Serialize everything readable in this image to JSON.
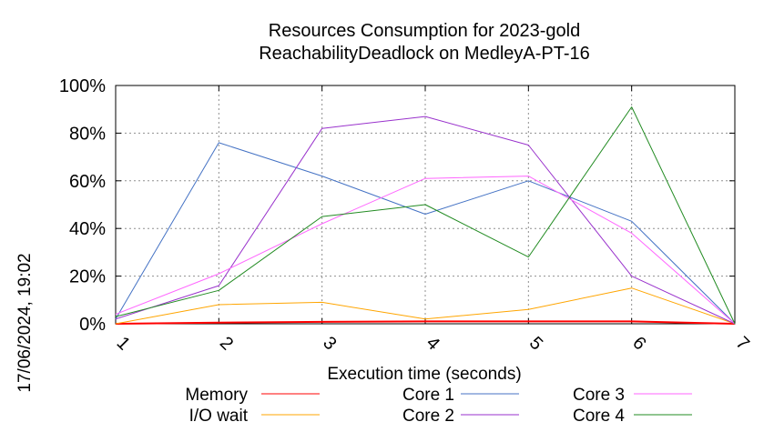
{
  "chart_data": {
    "type": "line",
    "title": [
      "Resources Consumption for 2023-gold",
      "ReachabilityDeadlock on MedleyA-PT-16"
    ],
    "xlabel": "Execution time (seconds)",
    "ylabel": "",
    "side_label": "17/06/2024, 19:02",
    "x": [
      1,
      2,
      3,
      4,
      5,
      6,
      7
    ],
    "xlim": [
      1,
      7
    ],
    "ylim": [
      0,
      100
    ],
    "x_ticks": [
      "1",
      "2",
      "3",
      "4",
      "5",
      "6",
      "7"
    ],
    "y_ticks": [
      {
        "value": 0,
        "label": "0%"
      },
      {
        "value": 20,
        "label": "20%"
      },
      {
        "value": 40,
        "label": "40%"
      },
      {
        "value": 60,
        "label": "60%"
      },
      {
        "value": 80,
        "label": "80%"
      },
      {
        "value": 100,
        "label": "100%"
      }
    ],
    "grid": true,
    "legend_position": "bottom",
    "series": [
      {
        "name": "Memory",
        "color": "#ff0000",
        "values": [
          0,
          0.5,
          0.8,
          1,
          1,
          1,
          0
        ]
      },
      {
        "name": "I/O wait",
        "color": "#ffa500",
        "values": [
          0,
          8,
          9,
          2,
          6,
          15,
          0
        ]
      },
      {
        "name": "Core 1",
        "color": "#4472c4",
        "values": [
          2,
          76,
          62,
          46,
          60,
          43,
          0
        ]
      },
      {
        "name": "Core 2",
        "color": "#9932cc",
        "values": [
          2,
          16,
          82,
          87,
          75,
          20,
          0
        ]
      },
      {
        "name": "Core 3",
        "color": "#ff66ff",
        "values": [
          4,
          21,
          42,
          61,
          62,
          38,
          0
        ]
      },
      {
        "name": "Core 4",
        "color": "#228b22",
        "values": [
          3,
          14,
          45,
          50,
          28,
          91,
          0
        ]
      }
    ]
  }
}
